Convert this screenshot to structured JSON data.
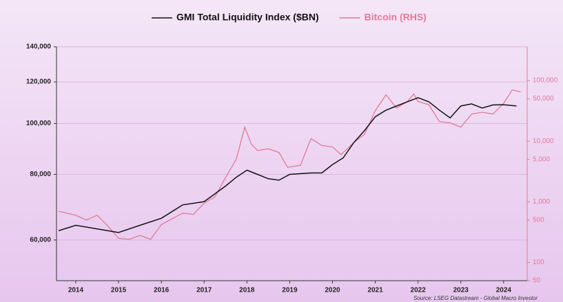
{
  "chart_data": {
    "type": "line",
    "source": "Source: LSEG Datastream - Global Macro Investor",
    "xlim": [
      2013.55,
      2024.55
    ],
    "xticks": [
      2014,
      2015,
      2016,
      2017,
      2018,
      2019,
      2020,
      2021,
      2022,
      2023,
      2024
    ],
    "ylim": [
      50200,
      140000
    ],
    "ylog": true,
    "yticks": [
      {
        "value": 60000,
        "label": "60,000"
      },
      {
        "value": 80000,
        "label": "80,000"
      },
      {
        "value": 100000,
        "label": "100,000"
      },
      {
        "value": 120000,
        "label": "120,000"
      },
      {
        "value": 140000,
        "label": "140,000"
      }
    ],
    "y2lim": [
      50,
      360000
    ],
    "y2log": true,
    "y2ticks": [
      50,
      100,
      500,
      {
        "value": 1000,
        "label": "1,000"
      },
      {
        "value": 5000,
        "label": "5,000"
      },
      {
        "value": 10000,
        "label": "10,000"
      },
      {
        "value": 50000,
        "label": "50,000"
      },
      {
        "value": 100000,
        "label": "100,000"
      }
    ],
    "grid": true,
    "legend": "top",
    "series": [
      {
        "name": "GMI Total Liquidity Index ($BN)",
        "color": "#111111",
        "x": [
          2013.6,
          2014.0,
          2014.5,
          2015.0,
          2015.5,
          2016.0,
          2016.5,
          2017.0,
          2017.5,
          2017.75,
          2018.0,
          2018.25,
          2018.5,
          2018.75,
          2019.0,
          2019.5,
          2019.75,
          2020.0,
          2020.25,
          2020.5,
          2020.75,
          2021.0,
          2021.25,
          2021.5,
          2021.75,
          2022.0,
          2022.25,
          2022.5,
          2022.75,
          2023.0,
          2023.25,
          2023.5,
          2023.75,
          2024.0,
          2024.3
        ],
        "values": [
          62500,
          64000,
          63000,
          62000,
          64000,
          66000,
          70000,
          71000,
          76000,
          79000,
          81500,
          80000,
          78500,
          78000,
          80000,
          80500,
          80500,
          83500,
          86000,
          92000,
          97000,
          103000,
          106000,
          108000,
          110000,
          112000,
          110000,
          106000,
          102500,
          108000,
          109000,
          107000,
          108500,
          108600,
          108000
        ]
      },
      {
        "name": "Bitcoin (RHS)",
        "color": "#e07a98",
        "axis": "y2",
        "x": [
          2013.6,
          2014.0,
          2014.25,
          2014.5,
          2014.75,
          2015.0,
          2015.25,
          2015.5,
          2015.75,
          2016.0,
          2016.5,
          2016.75,
          2017.0,
          2017.25,
          2017.5,
          2017.75,
          2017.95,
          2018.1,
          2018.25,
          2018.5,
          2018.75,
          2018.95,
          2019.25,
          2019.5,
          2019.75,
          2020.0,
          2020.2,
          2020.5,
          2020.75,
          2021.0,
          2021.25,
          2021.5,
          2021.75,
          2021.9,
          2022.0,
          2022.25,
          2022.5,
          2022.75,
          2023.0,
          2023.25,
          2023.5,
          2023.75,
          2024.0,
          2024.2,
          2024.4
        ],
        "values": [
          700,
          600,
          500,
          600,
          400,
          250,
          240,
          280,
          240,
          420,
          650,
          620,
          950,
          1200,
          2500,
          5000,
          17000,
          9000,
          7000,
          7500,
          6500,
          3700,
          4000,
          11000,
          8500,
          8000,
          6000,
          9500,
          13000,
          32000,
          58000,
          35000,
          45000,
          60000,
          45000,
          40000,
          21000,
          20000,
          17000,
          28000,
          30000,
          28000,
          42000,
          70000,
          65000
        ]
      }
    ]
  }
}
